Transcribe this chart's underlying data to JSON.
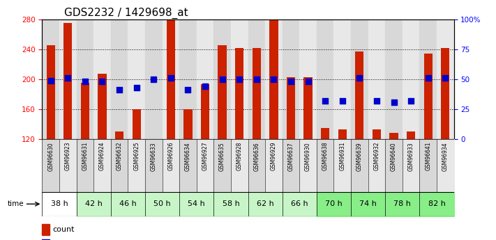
{
  "title": "GDS2232 / 1429698_at",
  "samples": [
    "GSM96630",
    "GSM96923",
    "GSM96631",
    "GSM96924",
    "GSM96632",
    "GSM96925",
    "GSM96633",
    "GSM96926",
    "GSM96634",
    "GSM96927",
    "GSM96635",
    "GSM96928",
    "GSM96636",
    "GSM96929",
    "GSM96637",
    "GSM96930",
    "GSM96638",
    "GSM96931",
    "GSM96639",
    "GSM96932",
    "GSM96640",
    "GSM96933",
    "GSM96641",
    "GSM96934"
  ],
  "counts": [
    245,
    275,
    195,
    207,
    130,
    160,
    120,
    279,
    160,
    193,
    245,
    242,
    242,
    279,
    203,
    203,
    135,
    133,
    237,
    133,
    128,
    130,
    234,
    242
  ],
  "percentiles": [
    49,
    51,
    48,
    48,
    41,
    43,
    50,
    51,
    41,
    44,
    50,
    50,
    50,
    50,
    48,
    48,
    32,
    32,
    51,
    32,
    31,
    32,
    51,
    51
  ],
  "time_groups": [
    {
      "label": "38 h",
      "color": "#ffffff"
    },
    {
      "label": "42 h",
      "color": "#c8f5c8"
    },
    {
      "label": "46 h",
      "color": "#c8f5c8"
    },
    {
      "label": "50 h",
      "color": "#c8f5c8"
    },
    {
      "label": "54 h",
      "color": "#c8f5c8"
    },
    {
      "label": "58 h",
      "color": "#c8f5c8"
    },
    {
      "label": "62 h",
      "color": "#c8f5c8"
    },
    {
      "label": "66 h",
      "color": "#c8f5c8"
    },
    {
      "label": "70 h",
      "color": "#88ee88"
    },
    {
      "label": "74 h",
      "color": "#88ee88"
    },
    {
      "label": "78 h",
      "color": "#88ee88"
    },
    {
      "label": "82 h",
      "color": "#88ee88"
    }
  ],
  "col_colors_even": "#d8d8d8",
  "col_colors_odd": "#e8e8e8",
  "bar_color": "#cc2200",
  "dot_color": "#0000cc",
  "ylim_left": [
    120,
    280
  ],
  "ylim_right": [
    0,
    100
  ],
  "yticks_left": [
    120,
    160,
    200,
    240,
    280
  ],
  "yticks_right": [
    0,
    25,
    50,
    75,
    100
  ],
  "background_color": "#ffffff",
  "title_fontsize": 11,
  "bar_width": 0.5,
  "dot_size": 30
}
